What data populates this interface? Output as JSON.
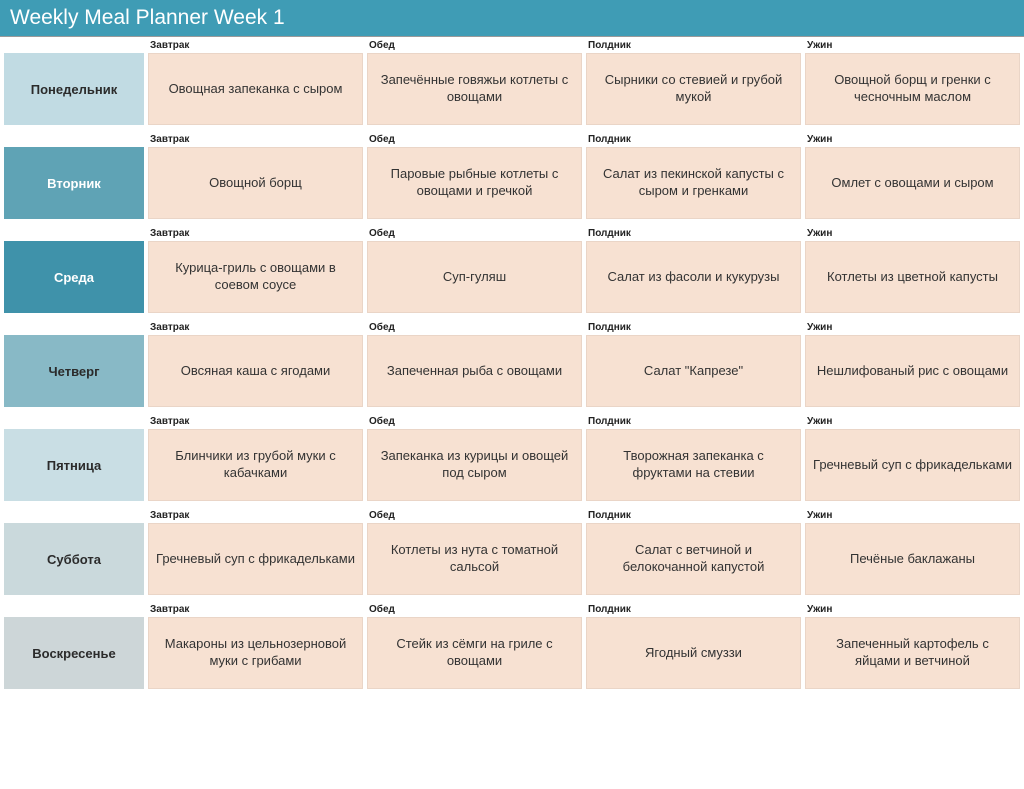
{
  "title": "Weekly Meal Planner Week 1",
  "colors": {
    "title_bar": "#3f9cb5",
    "meal_cell_bg": "#f7e1d2",
    "day_bg": [
      "#c1dbe3",
      "#5fa3b5",
      "#3f92aa",
      "#88b9c6",
      "#c9dee4",
      "#cad9dc",
      "#cdd6d8"
    ]
  },
  "columns": [
    "Завтрак",
    "Обед",
    "Полдник",
    "Ужин"
  ],
  "days": [
    {
      "name": "Понедельник",
      "meals": [
        "Овощная запеканка с сыром",
        "Запечённые говяжьи котлеты с овощами",
        "Сырники со стевией и грубой мукой",
        "Овощной борщ и гренки с чесночным маслом"
      ]
    },
    {
      "name": "Вторник",
      "meals": [
        "Овощной борщ",
        "Паровые рыбные котлеты с овощами и гречкой",
        "Салат из пекинской капусты с сыром и гренками",
        "Омлет с овощами и сыром"
      ]
    },
    {
      "name": "Среда",
      "meals": [
        "Курица-гриль с овощами в соевом соусе",
        "Суп-гуляш",
        "Салат из фасоли и кукурузы",
        "Котлеты из цветной капусты"
      ]
    },
    {
      "name": "Четверг",
      "meals": [
        "Овсяная каша с ягодами",
        "Запеченная рыба с овощами",
        "Салат \"Капрезе\"",
        "Нешлифованый рис с овощами"
      ]
    },
    {
      "name": "Пятница",
      "meals": [
        "Блинчики из грубой муки с кабачками",
        "Запеканка из курицы и овощей под сыром",
        "Творожная запеканка с фруктами на стевии",
        "Гречневый суп с фрикадельками"
      ]
    },
    {
      "name": "Суббота",
      "meals": [
        "Гречневый суп с фрикадельками",
        "Котлеты из нута с томатной сальсой",
        "Салат с ветчиной и белокочанной капустой",
        "Печёные баклажаны"
      ]
    },
    {
      "name": "Воскресенье",
      "meals": [
        "Макароны из цельнозерновой муки с грибами",
        "Стейк из сёмги на гриле с овощами",
        "Ягодный смуззи",
        "Запеченный картофель с яйцами и ветчиной"
      ]
    }
  ]
}
